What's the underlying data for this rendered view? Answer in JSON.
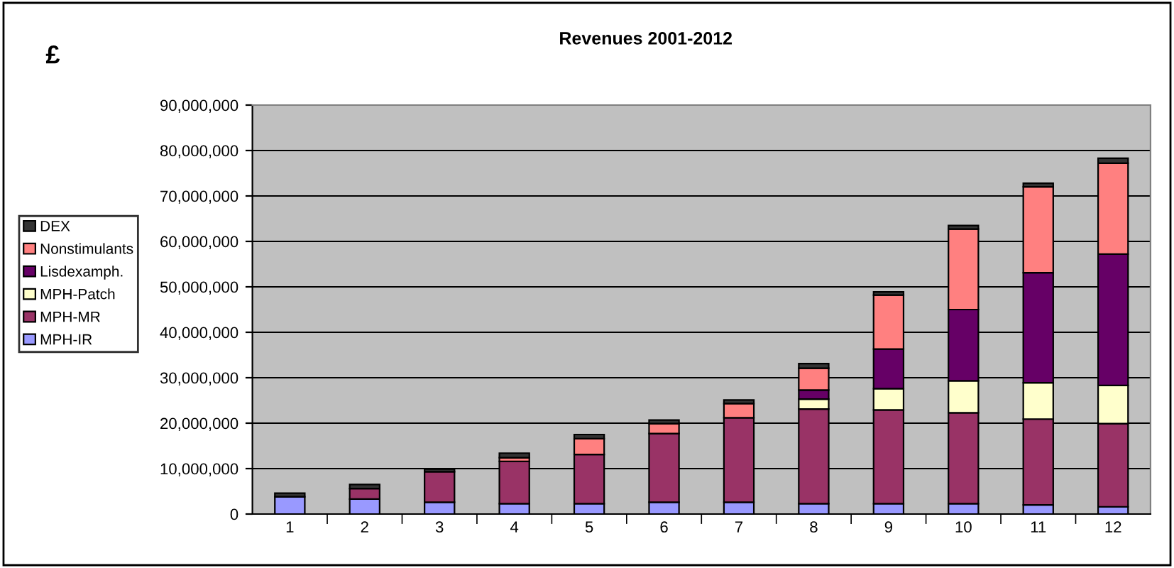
{
  "chart_data": {
    "type": "bar",
    "title": "Revenues 2001-2012",
    "ylabel": "£",
    "stacked": true,
    "grid": "y",
    "legend": "left",
    "categories": [
      "1",
      "2",
      "3",
      "4",
      "5",
      "6",
      "7",
      "8",
      "9",
      "10",
      "11",
      "12"
    ],
    "ylim": [
      0,
      90000000
    ],
    "yticks": [
      0,
      {
        "value": 10000000,
        "label": "10,000,000"
      },
      {
        "value": 20000000,
        "label": "20,000,000"
      },
      {
        "value": 30000000,
        "label": "30,000,000"
      },
      {
        "value": 40000000,
        "label": "40,000,000"
      },
      {
        "value": 50000000,
        "label": "50,000,000"
      },
      {
        "value": 60000000,
        "label": "60,000,000"
      },
      {
        "value": 70000000,
        "label": "70,000,000"
      },
      {
        "value": 80000000,
        "label": "80,000,000"
      },
      {
        "value": 90000000,
        "label": "90,000,000"
      }
    ],
    "series": [
      {
        "name": "MPH-IR",
        "color": "#9999ff",
        "values": [
          3800000,
          3300000,
          2600000,
          2300000,
          2300000,
          2600000,
          2600000,
          2300000,
          2300000,
          2300000,
          2000000,
          1600000
        ]
      },
      {
        "name": "MPH-MR",
        "color": "#993366",
        "values": [
          null,
          2300000,
          6700000,
          9300000,
          10800000,
          15100000,
          18600000,
          20800000,
          20600000,
          20000000,
          18900000,
          18300000
        ]
      },
      {
        "name": "MPH-Patch",
        "color": "#ffffcc",
        "values": [
          null,
          null,
          null,
          null,
          null,
          null,
          null,
          2200000,
          4700000,
          7000000,
          8000000,
          8400000
        ]
      },
      {
        "name": "Lisdexamph.",
        "color": "#660066",
        "values": [
          null,
          null,
          null,
          null,
          null,
          null,
          null,
          2000000,
          8700000,
          15700000,
          24200000,
          28900000
        ]
      },
      {
        "name": "Nonstimulants",
        "color": "#ff8080",
        "values": [
          null,
          null,
          null,
          800000,
          3500000,
          2200000,
          3100000,
          4800000,
          11900000,
          17700000,
          18900000,
          20000000
        ]
      },
      {
        "name": "DEX",
        "color": "#333333",
        "values": [
          800000,
          900000,
          600000,
          1000000,
          900000,
          800000,
          800000,
          1000000,
          700000,
          800000,
          800000,
          1100000
        ]
      }
    ]
  }
}
